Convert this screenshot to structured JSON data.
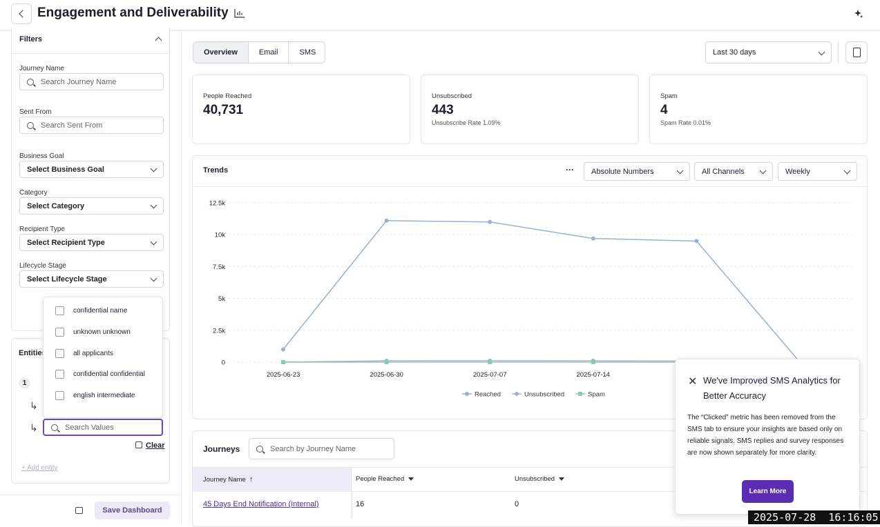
{
  "header": {
    "title": "Engagement and Deliverability"
  },
  "filters": {
    "title": "Filters",
    "fields": [
      {
        "label": "Journey Name",
        "placeholder": "Search Journey Name"
      },
      {
        "label": "Sent From",
        "placeholder": "Search Sent From"
      },
      {
        "label": "Business Goal",
        "placeholder": "Select Business Goal"
      },
      {
        "label": "Category",
        "placeholder": "Select Category"
      },
      {
        "label": "Recipient Type",
        "placeholder": "Select Recipient Type"
      },
      {
        "label": "Lifecycle Stage",
        "placeholder": "Select Lifecycle Stage"
      }
    ]
  },
  "dropdown": {
    "options": [
      "confidential name",
      "unknown unknown",
      "all applicants",
      "confidential confidential",
      "english intermediate"
    ],
    "search_placeholder": "Search Values",
    "clear": "Clear"
  },
  "entities": {
    "title": "Entities",
    "badge": "1",
    "add": "Add entity"
  },
  "save_button": "Save Dashboard",
  "tabs": [
    "Overview",
    "Email",
    "SMS"
  ],
  "date_range": "Last 30 days",
  "kpis": [
    {
      "label": "People Reached",
      "value": "40,731"
    },
    {
      "label": "Unsubscribed",
      "value": "443",
      "sub": "Unsubscribe Rate 1.09%"
    },
    {
      "label": "Spam",
      "value": "4",
      "sub": "Spam Rate 0.01%"
    }
  ],
  "trends": {
    "title": "Trends",
    "more": "···",
    "controls": [
      "Absolute Numbers",
      "All Channels",
      "Weekly"
    ]
  },
  "chart_data": {
    "type": "line",
    "categories": [
      "2025-06-23",
      "2025-06-30",
      "2025-07-07",
      "2025-07-14",
      null,
      null
    ],
    "series": [
      {
        "name": "Reached",
        "color": "#9aaed8",
        "values": [
          1000,
          11100,
          11000,
          9700,
          9500,
          0
        ]
      },
      {
        "name": "Unsubscribed",
        "color": "#a6acd6",
        "values": [
          10,
          100,
          110,
          100,
          80,
          0
        ]
      },
      {
        "name": "Spam",
        "color": "#8ccbb0",
        "values": [
          0,
          0,
          1,
          2,
          1,
          0
        ]
      }
    ],
    "ylim": [
      0,
      12500
    ],
    "yticks": [
      0,
      {
        "value": 2500,
        "label": "2.5k"
      },
      {
        "value": 5000,
        "label": "5k"
      },
      {
        "value": 7500,
        "label": "7.5k"
      },
      {
        "value": 10000,
        "label": "10k"
      },
      {
        "value": 12500,
        "label": "12.5k"
      }
    ],
    "grid": true,
    "legend": "bottom"
  },
  "journeys": {
    "title": "Journeys",
    "search_placeholder": "Search by Journey Name",
    "columns": [
      "Journey Name",
      "People Reached",
      "Unsubscribed"
    ],
    "rows": [
      [
        "45 Days End Notification (Internal)",
        "16",
        "0"
      ]
    ]
  },
  "popup": {
    "title": "We've Improved SMS Analytics for Better Accuracy",
    "body": "The “Clicked” metric has been removed from the SMS tab to ensure your insights are based only on reliable signals. SMS replies and survey responses are now shown separately for more clarity.",
    "button": "Learn More"
  },
  "timestamp": "2025-07-28  16:16:05"
}
